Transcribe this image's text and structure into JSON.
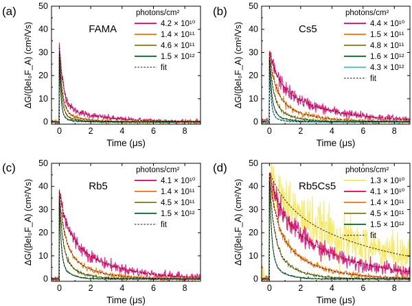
{
  "chart_data": [
    {
      "type": "line",
      "panel_label": "(a)",
      "sample_label": "FAMA",
      "xlabel": "Time (μs)",
      "ylabel": "ΔG/(βeI₀F_A) (cm²/Vs)",
      "xlim": [
        -0.5,
        9
      ],
      "ylim": [
        -1,
        50
      ],
      "xticks": [
        0,
        2,
        4,
        6,
        8
      ],
      "yticks": [
        0,
        10,
        20,
        30,
        40,
        50
      ],
      "legend_title": "photons/cm²",
      "legend_position": "top-right",
      "grid": false,
      "fit_label": "fit",
      "series": [
        {
          "name": "4.2 × 10¹⁰",
          "color": "#e8197c",
          "peak": 33,
          "tau": [
            0.25,
            2.2
          ],
          "frac": 0.78,
          "noise": 0.9
        },
        {
          "name": "1.4 × 10¹¹",
          "color": "#f58220",
          "peak": 30,
          "tau": [
            0.2,
            1.2
          ],
          "frac": 0.85,
          "noise": 0.6
        },
        {
          "name": "4.6 × 10¹¹",
          "color": "#8b8b2c",
          "peak": 29,
          "tau": [
            0.15,
            0.8
          ],
          "frac": 0.88,
          "noise": 0.4
        },
        {
          "name": "1.5 × 10¹²",
          "color": "#1a7a3a",
          "peak": 28,
          "tau": [
            0.1,
            0.5
          ],
          "frac": 0.9,
          "noise": 0.3
        }
      ]
    },
    {
      "type": "line",
      "panel_label": "(b)",
      "sample_label": "Cs5",
      "xlabel": "Time (μs)",
      "ylabel": "ΔG/(βeI₀F_A) (cm²/Vs)",
      "xlim": [
        -0.5,
        9
      ],
      "ylim": [
        -1,
        50
      ],
      "xticks": [
        0,
        2,
        4,
        6,
        8
      ],
      "yticks": [
        0,
        10,
        20,
        30,
        40,
        50
      ],
      "legend_title": "photons/cm²",
      "legend_position": "top-right",
      "grid": false,
      "fit_label": "fit",
      "series": [
        {
          "name": "4.4 × 10¹⁰",
          "color": "#e8197c",
          "peak": 30,
          "tau": [
            0.6,
            3.2
          ],
          "frac": 0.45,
          "noise": 1.2
        },
        {
          "name": "1.5 × 10¹¹",
          "color": "#f58220",
          "peak": 29,
          "tau": [
            0.4,
            1.8
          ],
          "frac": 0.6,
          "noise": 0.8
        },
        {
          "name": "4.8 × 10¹¹",
          "color": "#8b8b2c",
          "peak": 28,
          "tau": [
            0.25,
            1.1
          ],
          "frac": 0.7,
          "noise": 0.5
        },
        {
          "name": "1.6 × 10¹²",
          "color": "#1a7a3a",
          "peak": 27,
          "tau": [
            0.15,
            0.7
          ],
          "frac": 0.8,
          "noise": 0.3
        },
        {
          "name": "4.3 × 10¹²",
          "color": "#5bc8d8",
          "peak": 26,
          "tau": [
            0.1,
            0.45
          ],
          "frac": 0.85,
          "noise": 0.3
        }
      ]
    },
    {
      "type": "line",
      "panel_label": "(c)",
      "sample_label": "Rb5",
      "xlabel": "Time (μs)",
      "ylabel": "ΔG/(βeI₀F_A) (cm²/Vs)",
      "xlim": [
        -0.5,
        9
      ],
      "ylim": [
        -1,
        50
      ],
      "xticks": [
        0,
        2,
        4,
        6,
        8
      ],
      "yticks": [
        0,
        10,
        20,
        30,
        40,
        50
      ],
      "legend_title": "photons/cm²",
      "legend_position": "top-right",
      "grid": false,
      "fit_label": "fit",
      "series": [
        {
          "name": "4.1 × 10¹⁰",
          "color": "#e8197c",
          "peak": 38,
          "tau": [
            0.5,
            2.6
          ],
          "frac": 0.45,
          "noise": 1.3
        },
        {
          "name": "1.4 × 10¹¹",
          "color": "#f58220",
          "peak": 36,
          "tau": [
            0.35,
            1.6
          ],
          "frac": 0.6,
          "noise": 0.8
        },
        {
          "name": "4.5 × 10¹¹",
          "color": "#8b8b2c",
          "peak": 35,
          "tau": [
            0.22,
            1.0
          ],
          "frac": 0.7,
          "noise": 0.5
        },
        {
          "name": "1.5 × 10¹²",
          "color": "#1a7a3a",
          "peak": 34,
          "tau": [
            0.12,
            0.6
          ],
          "frac": 0.8,
          "noise": 0.3
        }
      ]
    },
    {
      "type": "line",
      "panel_label": "(d)",
      "sample_label": "Rb5Cs5",
      "xlabel": "Time (μs)",
      "ylabel": "ΔG/(βeI₀F_A) (cm²/Vs)",
      "xlim": [
        -0.5,
        9
      ],
      "ylim": [
        -1,
        50
      ],
      "xticks": [
        0,
        2,
        4,
        6,
        8
      ],
      "yticks": [
        0,
        10,
        20,
        30,
        40,
        50
      ],
      "legend_title": "photons/cm²",
      "legend_position": "top-right",
      "grid": false,
      "fit_label": "fit",
      "series": [
        {
          "name": "1.3 × 10¹⁰",
          "color": "#f7e96a",
          "peak": 46,
          "tau": [
            1.2,
            7.5
          ],
          "frac": 0.3,
          "noise": 4.0
        },
        {
          "name": "4.1 × 10¹⁰",
          "color": "#e8197c",
          "peak": 45,
          "tau": [
            0.8,
            4.0
          ],
          "frac": 0.35,
          "noise": 1.8
        },
        {
          "name": "1.4 × 10¹¹",
          "color": "#f58220",
          "peak": 44,
          "tau": [
            0.5,
            2.2
          ],
          "frac": 0.5,
          "noise": 0.9
        },
        {
          "name": "4.5 × 10¹¹",
          "color": "#8b8b2c",
          "peak": 43,
          "tau": [
            0.3,
            1.3
          ],
          "frac": 0.65,
          "noise": 0.5
        },
        {
          "name": "1.5 × 10¹²",
          "color": "#1a7a3a",
          "peak": 42,
          "tau": [
            0.15,
            0.75
          ],
          "frac": 0.8,
          "noise": 0.3
        }
      ]
    }
  ]
}
